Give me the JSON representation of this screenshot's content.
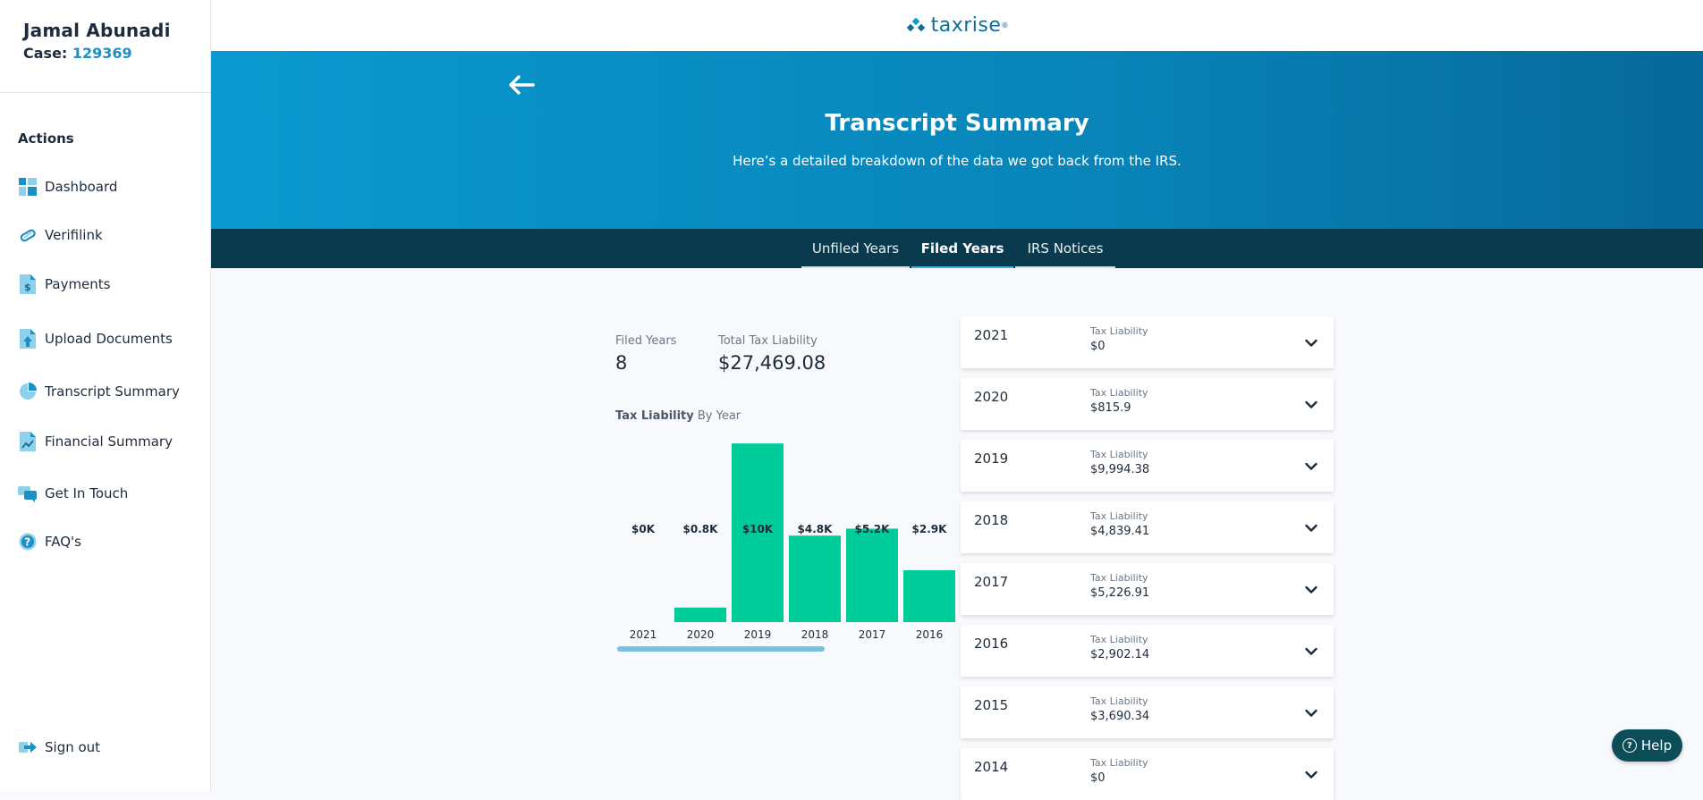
{
  "user": {
    "name": "Jamal Abunadi",
    "case_label": "Case:",
    "case_number": "129369"
  },
  "sidebar": {
    "actions_title": "Actions",
    "items": [
      {
        "label": "Dashboard",
        "icon": "dashboard-icon"
      },
      {
        "label": "Verifilink",
        "icon": "link-icon"
      },
      {
        "label": "Payments",
        "icon": "payments-icon"
      },
      {
        "label": "Upload Documents",
        "icon": "upload-icon"
      },
      {
        "label": "Transcript Summary",
        "icon": "pie-chart-icon"
      },
      {
        "label": "Financial Summary",
        "icon": "financial-icon"
      },
      {
        "label": "Get In Touch",
        "icon": "chat-icon"
      },
      {
        "label": "FAQ's",
        "icon": "question-icon"
      }
    ],
    "sign_out": "Sign out"
  },
  "brand": {
    "name": "taxrise",
    "accent": "#0d6e96"
  },
  "hero": {
    "title": "Transcript Summary",
    "subtitle": "Here’s a detailed breakdown of the data we got back from the IRS."
  },
  "tabs": [
    {
      "label": "Unfiled Years",
      "active": false
    },
    {
      "label": "Filed Years",
      "active": true
    },
    {
      "label": "IRS Notices",
      "active": false
    }
  ],
  "summary": {
    "filed_years_label": "Filed Years",
    "filed_years_value": "8",
    "total_label": "Total Tax Liability",
    "total_value": "$27,469.08",
    "chart_title_bold": "Tax Liability",
    "chart_title_rest": " By Year"
  },
  "chart_data": {
    "type": "bar",
    "title": "Tax Liability By Year",
    "categories": [
      "2021",
      "2020",
      "2019",
      "2018",
      "2017",
      "2016"
    ],
    "values": [
      0,
      815.9,
      9994.38,
      4839.41,
      5226.91,
      2902.14
    ],
    "data_labels": [
      "$0K",
      "$0.8K",
      "$10K",
      "$4.8K",
      "$5.2K",
      "$2.9K"
    ],
    "bar_color": "#00cc99",
    "ylim": [
      0,
      10000
    ]
  },
  "years": [
    {
      "year": "2021",
      "label": "Tax Liability",
      "value": "$0"
    },
    {
      "year": "2020",
      "label": "Tax Liability",
      "value": "$815.9"
    },
    {
      "year": "2019",
      "label": "Tax Liability",
      "value": "$9,994.38"
    },
    {
      "year": "2018",
      "label": "Tax Liability",
      "value": "$4,839.41"
    },
    {
      "year": "2017",
      "label": "Tax Liability",
      "value": "$5,226.91"
    },
    {
      "year": "2016",
      "label": "Tax Liability",
      "value": "$2,902.14"
    },
    {
      "year": "2015",
      "label": "Tax Liability",
      "value": "$3,690.34"
    },
    {
      "year": "2014",
      "label": "Tax Liability",
      "value": "$0"
    }
  ],
  "help": {
    "label": "Help"
  }
}
